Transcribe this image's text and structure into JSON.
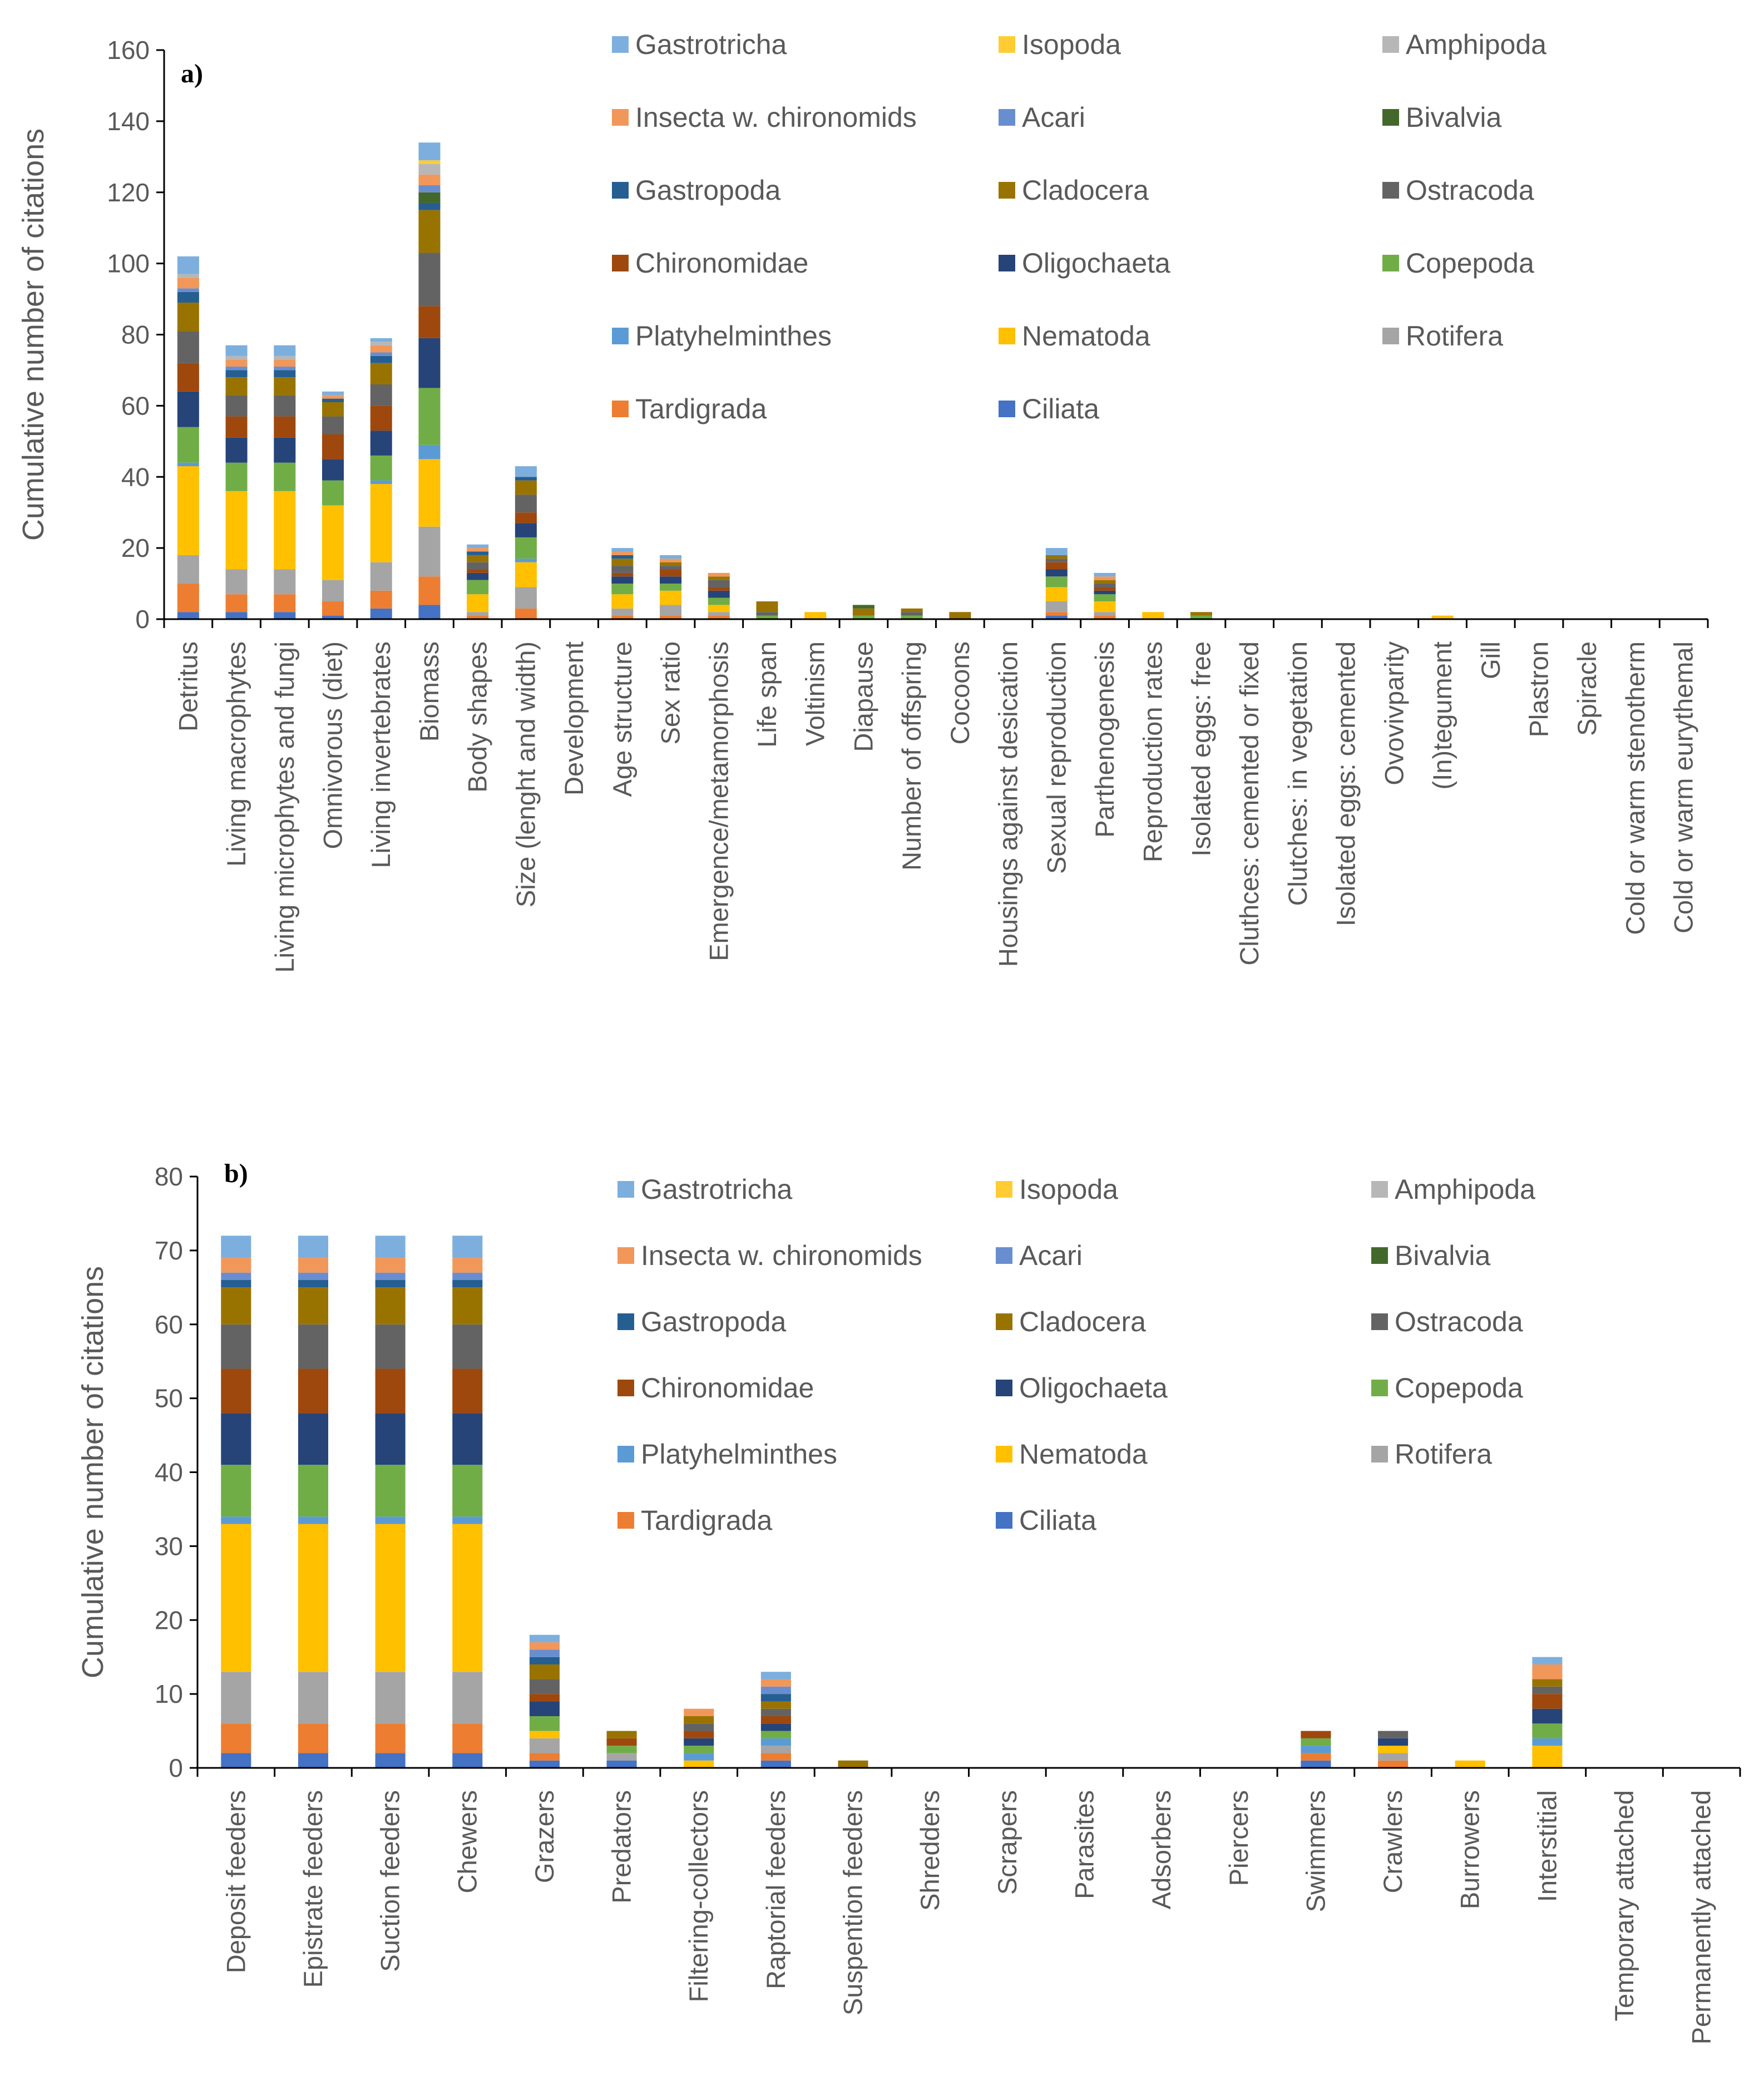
{
  "taxa": [
    "Ciliata",
    "Tardigrada",
    "Rotifera",
    "Nematoda",
    "Platyhelminthes",
    "Copepoda",
    "Oligochaeta",
    "Chironomidae",
    "Ostracoda",
    "Cladocera",
    "Gastropoda",
    "Bivalvia",
    "Acari",
    "Insecta w. chironomids",
    "Amphipoda",
    "Isopoda",
    "Gastrotricha"
  ],
  "colors": {
    "Ciliata": "#4472C4",
    "Tardigrada": "#ED7D31",
    "Rotifera": "#A5A5A5",
    "Nematoda": "#FFC000",
    "Platyhelminthes": "#5B9BD5",
    "Copepoda": "#70AD47",
    "Oligochaeta": "#264478",
    "Chironomidae": "#9E480E",
    "Ostracoda": "#636363",
    "Cladocera": "#997300",
    "Gastropoda": "#255E91",
    "Bivalvia": "#43682B",
    "Acari": "#698ED0",
    "Insecta w. chironomids": "#F1975A",
    "Amphipoda": "#B7B7B7",
    "Isopoda": "#FFCD33",
    "Gastrotricha": "#7CAFDD"
  },
  "legend_order": [
    "Gastrotricha",
    "Isopoda",
    "Amphipoda",
    "Insecta w. chironomids",
    "Acari",
    "Bivalvia",
    "Gastropoda",
    "Cladocera",
    "Ostracoda",
    "Chironomidae",
    "Oligochaeta",
    "Copepoda",
    "Platyhelminthes",
    "Nematoda",
    "Rotifera",
    "Tardigrada",
    "Ciliata"
  ],
  "chart_data": [
    {
      "type": "bar",
      "stacked": true,
      "panel_label": "a)",
      "title": "",
      "xlabel": "",
      "ylabel": "Cumulative number of citations",
      "ylim": [
        0,
        160
      ],
      "yticks": [
        0,
        20,
        40,
        60,
        80,
        100,
        120,
        140,
        160
      ],
      "categories": [
        "Detritus",
        "Living macrophytes",
        "Living microphytes and fungi",
        "Omnivorous (diet)",
        "Living invertebrates",
        "Biomass",
        "Body shapes",
        "Size (lenght and width)",
        "Development",
        "Age structure",
        "Sex ratio",
        "Emergence/metamorphosis",
        "Life span",
        "Voltinism",
        "Diapause",
        "Number of offspring",
        "Cocoons",
        "Housings against desication",
        "Sexual reproduction",
        "Parthenogenesis",
        "Reproduction rates",
        "Isolated eggs: free",
        "Cluthces: cemented or fixed",
        "Clutches: in vegetation",
        "Isolated eggs: cemented",
        "Ovovivparity",
        "(In)tegument",
        "Gill",
        "Plastron",
        "Spiracle",
        "Cold or warm  stenotherm",
        "Cold or warm eurythemal"
      ],
      "series": [
        {
          "name": "Ciliata",
          "values": [
            2,
            2,
            2,
            1,
            3,
            4,
            0,
            0,
            0,
            0,
            0,
            0,
            0,
            0,
            0,
            0,
            0,
            0,
            1,
            0,
            0,
            0,
            0,
            0,
            0,
            0,
            0,
            0,
            0,
            0,
            0,
            0
          ]
        },
        {
          "name": "Tardigrada",
          "values": [
            8,
            5,
            5,
            4,
            5,
            8,
            1,
            3,
            0,
            1,
            1,
            1,
            0,
            0,
            0,
            0,
            0,
            0,
            1,
            1,
            0,
            0,
            0,
            0,
            0,
            0,
            0,
            0,
            0,
            0,
            0,
            0
          ]
        },
        {
          "name": "Rotifera",
          "values": [
            8,
            7,
            7,
            6,
            8,
            14,
            1,
            6,
            0,
            2,
            3,
            1,
            0,
            0,
            0,
            0,
            0,
            0,
            3,
            1,
            0,
            0,
            0,
            0,
            0,
            0,
            0,
            0,
            0,
            0,
            0,
            0
          ]
        },
        {
          "name": "Nematoda",
          "values": [
            25,
            22,
            22,
            21,
            22,
            19,
            5,
            7,
            0,
            4,
            4,
            2,
            0,
            2,
            0,
            0,
            0,
            0,
            4,
            3,
            2,
            0,
            0,
            0,
            0,
            0,
            1,
            0,
            0,
            0,
            0,
            0
          ]
        },
        {
          "name": "Platyhelminthes",
          "values": [
            1,
            0,
            0,
            0,
            1,
            4,
            0,
            1,
            0,
            0,
            0,
            0,
            0,
            0,
            0,
            0,
            0,
            0,
            0,
            0,
            0,
            0,
            0,
            0,
            0,
            0,
            0,
            0,
            0,
            0,
            0,
            0
          ]
        },
        {
          "name": "Copepoda",
          "values": [
            10,
            8,
            8,
            7,
            7,
            16,
            4,
            6,
            0,
            3,
            2,
            2,
            1,
            0,
            1,
            1,
            0,
            0,
            3,
            2,
            0,
            1,
            0,
            0,
            0,
            0,
            0,
            0,
            0,
            0,
            0,
            0
          ]
        },
        {
          "name": "Oligochaeta",
          "values": [
            10,
            7,
            7,
            6,
            7,
            14,
            2,
            4,
            0,
            2,
            2,
            2,
            0,
            0,
            0,
            0,
            0,
            0,
            2,
            1,
            0,
            0,
            0,
            0,
            0,
            0,
            0,
            0,
            0,
            0,
            0,
            0
          ]
        },
        {
          "name": "Chironomidae",
          "values": [
            8,
            6,
            6,
            7,
            7,
            9,
            1,
            3,
            0,
            1,
            2,
            1,
            0,
            0,
            0,
            0,
            0,
            0,
            2,
            1,
            0,
            0,
            0,
            0,
            0,
            0,
            0,
            0,
            0,
            0,
            0,
            0
          ]
        },
        {
          "name": "Ostracoda",
          "values": [
            9,
            6,
            6,
            5,
            6,
            15,
            2,
            5,
            0,
            2,
            1,
            2,
            1,
            0,
            0,
            1,
            0,
            0,
            1,
            1,
            0,
            0,
            0,
            0,
            0,
            0,
            0,
            0,
            0,
            0,
            0,
            0
          ]
        },
        {
          "name": "Cladocera",
          "values": [
            8,
            5,
            5,
            4,
            6,
            12,
            2,
            4,
            0,
            2,
            1,
            1,
            3,
            0,
            2,
            1,
            2,
            0,
            1,
            1,
            0,
            1,
            0,
            0,
            0,
            0,
            0,
            0,
            0,
            0,
            0,
            0
          ]
        },
        {
          "name": "Gastropoda",
          "values": [
            3,
            2,
            2,
            1,
            2,
            2,
            1,
            1,
            0,
            1,
            0,
            0,
            0,
            0,
            0,
            0,
            0,
            0,
            0,
            0,
            0,
            0,
            0,
            0,
            0,
            0,
            0,
            0,
            0,
            0,
            0,
            0
          ]
        },
        {
          "name": "Bivalvia",
          "values": [
            0,
            0,
            0,
            0,
            0,
            3,
            0,
            0,
            0,
            0,
            0,
            0,
            0,
            0,
            1,
            0,
            0,
            0,
            0,
            0,
            0,
            0,
            0,
            0,
            0,
            0,
            0,
            0,
            0,
            0,
            0,
            0
          ]
        },
        {
          "name": "Acari",
          "values": [
            1,
            1,
            1,
            0,
            1,
            2,
            0,
            0,
            0,
            0,
            0,
            0,
            0,
            0,
            0,
            0,
            0,
            0,
            0,
            0,
            0,
            0,
            0,
            0,
            0,
            0,
            0,
            0,
            0,
            0,
            0,
            0
          ]
        },
        {
          "name": "Insecta w. chironomids",
          "values": [
            3,
            2,
            2,
            1,
            2,
            3,
            1,
            0,
            0,
            1,
            1,
            1,
            0,
            0,
            0,
            0,
            0,
            0,
            0,
            1,
            0,
            0,
            0,
            0,
            0,
            0,
            0,
            0,
            0,
            0,
            0,
            0
          ]
        },
        {
          "name": "Amphipoda",
          "values": [
            1,
            1,
            1,
            0,
            1,
            3,
            0,
            0,
            0,
            0,
            0,
            0,
            0,
            0,
            0,
            0,
            0,
            0,
            0,
            0,
            0,
            0,
            0,
            0,
            0,
            0,
            0,
            0,
            0,
            0,
            0,
            0
          ]
        },
        {
          "name": "Isopoda",
          "values": [
            0,
            0,
            0,
            0,
            0,
            1,
            0,
            0,
            0,
            0,
            0,
            0,
            0,
            0,
            0,
            0,
            0,
            0,
            0,
            0,
            0,
            0,
            0,
            0,
            0,
            0,
            0,
            0,
            0,
            0,
            0,
            0
          ]
        },
        {
          "name": "Gastrotricha",
          "values": [
            5,
            3,
            3,
            1,
            1,
            5,
            1,
            3,
            0,
            1,
            1,
            0,
            0,
            0,
            0,
            0,
            0,
            0,
            2,
            1,
            0,
            0,
            0,
            0,
            0,
            0,
            0,
            0,
            0,
            0,
            0,
            0
          ]
        }
      ]
    },
    {
      "type": "bar",
      "stacked": true,
      "panel_label": "b)",
      "title": "",
      "xlabel": "",
      "ylabel": "Cumulative number of citations",
      "ylim": [
        0,
        80
      ],
      "yticks": [
        0,
        10,
        20,
        30,
        40,
        50,
        60,
        70,
        80
      ],
      "categories": [
        "Deposit feeders",
        "Epistrate feeders",
        "Suction feeders",
        "Chewers",
        "Grazers",
        "Predators",
        "Filtering-collectors",
        "Raptorial feeders",
        "Suspention feeders",
        "Shredders",
        "Scrapers",
        "Parasites",
        "Adsorbers",
        "Piercers",
        "Swimmers",
        "Crawlers",
        "Burrowers",
        "Interstitial",
        "Temporary attached",
        "Permanently attached"
      ],
      "series": [
        {
          "name": "Ciliata",
          "values": [
            2,
            2,
            2,
            2,
            1,
            1,
            0,
            1,
            0,
            0,
            0,
            0,
            0,
            0,
            1,
            0,
            0,
            0,
            0,
            0
          ]
        },
        {
          "name": "Tardigrada",
          "values": [
            4,
            4,
            4,
            4,
            1,
            0,
            0,
            1,
            0,
            0,
            0,
            0,
            0,
            0,
            1,
            1,
            0,
            0,
            0,
            0
          ]
        },
        {
          "name": "Rotifera",
          "values": [
            7,
            7,
            7,
            7,
            2,
            1,
            0,
            1,
            0,
            0,
            0,
            0,
            0,
            0,
            0,
            1,
            0,
            0,
            0,
            0
          ]
        },
        {
          "name": "Nematoda",
          "values": [
            20,
            20,
            20,
            20,
            1,
            0,
            1,
            0,
            0,
            0,
            0,
            0,
            0,
            0,
            0,
            1,
            1,
            3,
            0,
            0
          ]
        },
        {
          "name": "Platyhelminthes",
          "values": [
            1,
            1,
            1,
            1,
            0,
            0,
            1,
            1,
            0,
            0,
            0,
            0,
            0,
            0,
            1,
            0,
            0,
            1,
            0,
            0
          ]
        },
        {
          "name": "Copepoda",
          "values": [
            7,
            7,
            7,
            7,
            2,
            1,
            1,
            1,
            0,
            0,
            0,
            0,
            0,
            0,
            1,
            0,
            0,
            2,
            0,
            0
          ]
        },
        {
          "name": "Oligochaeta",
          "values": [
            7,
            7,
            7,
            7,
            2,
            0,
            1,
            1,
            0,
            0,
            0,
            0,
            0,
            0,
            0,
            1,
            0,
            2,
            0,
            0
          ]
        },
        {
          "name": "Chironomidae",
          "values": [
            6,
            6,
            6,
            6,
            1,
            1,
            1,
            1,
            0,
            0,
            0,
            0,
            0,
            0,
            1,
            0,
            0,
            2,
            0,
            0
          ]
        },
        {
          "name": "Ostracoda",
          "values": [
            6,
            6,
            6,
            6,
            2,
            0,
            1,
            1,
            0,
            0,
            0,
            0,
            0,
            0,
            0,
            1,
            0,
            1,
            0,
            0
          ]
        },
        {
          "name": "Cladocera",
          "values": [
            5,
            5,
            5,
            5,
            2,
            1,
            1,
            1,
            1,
            0,
            0,
            0,
            0,
            0,
            0,
            0,
            0,
            1,
            0,
            0
          ]
        },
        {
          "name": "Gastropoda",
          "values": [
            1,
            1,
            1,
            1,
            1,
            0,
            0,
            1,
            0,
            0,
            0,
            0,
            0,
            0,
            0,
            0,
            0,
            0,
            0,
            0
          ]
        },
        {
          "name": "Bivalvia",
          "values": [
            0,
            0,
            0,
            0,
            0,
            0,
            0,
            0,
            0,
            0,
            0,
            0,
            0,
            0,
            0,
            0,
            0,
            0,
            0,
            0
          ]
        },
        {
          "name": "Acari",
          "values": [
            1,
            1,
            1,
            1,
            1,
            0,
            0,
            1,
            0,
            0,
            0,
            0,
            0,
            0,
            0,
            0,
            0,
            0,
            0,
            0
          ]
        },
        {
          "name": "Insecta w. chironomids",
          "values": [
            2,
            2,
            2,
            2,
            1,
            0,
            1,
            1,
            0,
            0,
            0,
            0,
            0,
            0,
            0,
            0,
            0,
            2,
            0,
            0
          ]
        },
        {
          "name": "Amphipoda",
          "values": [
            0,
            0,
            0,
            0,
            0,
            0,
            0,
            0,
            0,
            0,
            0,
            0,
            0,
            0,
            0,
            0,
            0,
            0,
            0,
            0
          ]
        },
        {
          "name": "Isopoda",
          "values": [
            0,
            0,
            0,
            0,
            0,
            0,
            0,
            0,
            0,
            0,
            0,
            0,
            0,
            0,
            0,
            0,
            0,
            0,
            0,
            0
          ]
        },
        {
          "name": "Gastrotricha",
          "values": [
            3,
            3,
            3,
            3,
            1,
            0,
            0,
            1,
            0,
            0,
            0,
            0,
            0,
            0,
            0,
            0,
            0,
            1,
            0,
            0
          ]
        }
      ]
    }
  ]
}
